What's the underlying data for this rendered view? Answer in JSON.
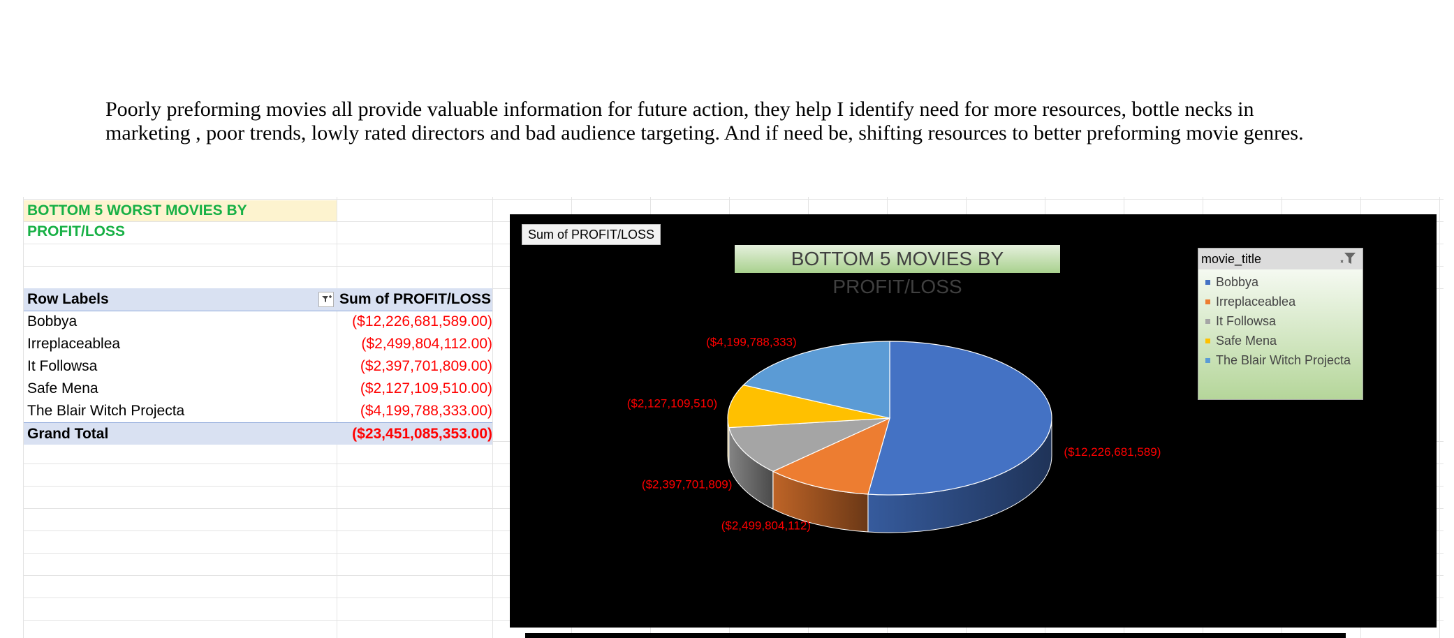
{
  "intro": {
    "line1": "Poorly preforming movies all provide valuable information for future action, they help I identify need for more resources, bottle necks in",
    "line2": "marketing , poor trends, lowly rated directors and bad audience targeting. And if need be, shifting resources to better preforming movie genres."
  },
  "pivot": {
    "title": "BOTTOM 5 WORST MOVIES BY PROFIT/LOSS",
    "header_label": "Row Labels",
    "header_value": "Sum of PROFIT/LOSS",
    "rows": [
      {
        "label": "Bobbya",
        "value": "($12,226,681,589.00)"
      },
      {
        "label": "Irreplaceablea",
        "value": "($2,499,804,112.00)"
      },
      {
        "label": "It Followsa",
        "value": "($2,397,701,809.00)"
      },
      {
        "label": "Safe Mena",
        "value": "($2,127,109,510.00)"
      },
      {
        "label": "The Blair Witch Projecta",
        "value": "($4,199,788,333.00)"
      }
    ],
    "total_label": "Grand Total",
    "total_value": "($23,451,085,353.00)"
  },
  "chart_data": {
    "type": "pie",
    "title": "BOTTOM 5 MOVIES BY PROFIT/LOSS",
    "field_button": "Sum of PROFIT/LOSS",
    "categories": [
      "Bobbya",
      "Irreplaceablea",
      "It Followsa",
      "Safe Mena",
      "The Blair Witch Projecta"
    ],
    "values": [
      -12226681589,
      -2499804112,
      -2397701809,
      -2127109510,
      -4199788333
    ],
    "data_labels": [
      "($12,226,681,589)",
      "($2,499,804,112)",
      "($2,397,701,809)",
      "($2,127,109,510)",
      "($4,199,788,333)"
    ],
    "colors": [
      "#4472c4",
      "#ed7d31",
      "#a5a5a5",
      "#ffc000",
      "#5b9bd5"
    ],
    "label_color": "#ff0000",
    "background": "#000000",
    "legend_placement": "top-right"
  },
  "slicer": {
    "title": "movie_title",
    "filter_icon": "filter-icon"
  }
}
